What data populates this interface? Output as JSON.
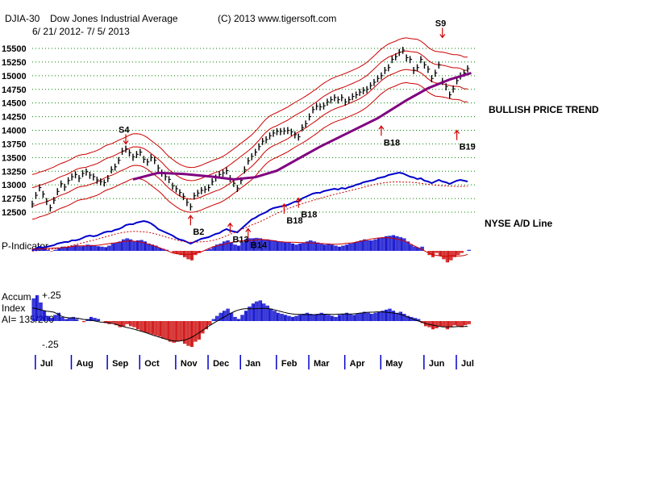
{
  "header": {
    "symbol": "DJIA-30",
    "name": "Dow Jones Industrial Average",
    "copyright": "(C) 2013 www.tigersoft.com",
    "date_range": "6/ 21/ 2012- 7/ 5/ 2013"
  },
  "annotations": {
    "trend": "BULLISH PRICE TREND",
    "ad_line": "NYSE A/D Line",
    "p_indicator": "P-Indicator",
    "accum_title_1": "Accum",
    "accum_title_2": "Index",
    "ai_label": "AI= 135/200",
    "accum_top": "+.25",
    "accum_bottom": "-.25"
  },
  "colors": {
    "price_bar": "#000000",
    "band": "#cc0000",
    "ma": "#800080",
    "ad_line": "#0000cc",
    "positive": "#0000cc",
    "negative": "#cc0000",
    "grid": "#008000",
    "signal": "#cc0000",
    "month_tick": "#0000cc"
  },
  "chart_data": {
    "type": "line",
    "title": "DJIA-30 Dow Jones Industrial Average",
    "subtitle": "6/ 21/ 2012- 7/ 5/ 2013",
    "y_ticks": [
      12500,
      12750,
      13000,
      13250,
      13500,
      13750,
      14000,
      14250,
      14500,
      14750,
      15000,
      15250,
      15500
    ],
    "ylim": [
      12500,
      15500
    ],
    "months": [
      "Jul",
      "Aug",
      "Sep",
      "Oct",
      "Nov",
      "Dec",
      "Jan",
      "Feb",
      "Mar",
      "Apr",
      "May",
      "Jun",
      "Jul"
    ],
    "month_start_index": [
      4,
      14,
      24,
      33,
      43,
      52,
      61,
      71,
      80,
      90,
      100,
      112,
      121
    ],
    "price_close": [
      12650,
      12810,
      12950,
      12830,
      12700,
      12580,
      12720,
      12880,
      13020,
      12960,
      13080,
      13150,
      13190,
      13120,
      13210,
      13240,
      13180,
      13150,
      13090,
      13060,
      13040,
      13120,
      13280,
      13330,
      13450,
      13620,
      13660,
      13590,
      13510,
      13560,
      13600,
      13470,
      13420,
      13500,
      13450,
      13310,
      13220,
      13150,
      13100,
      12980,
      12930,
      12860,
      12790,
      12680,
      12600,
      12800,
      12850,
      12900,
      12920,
      12950,
      13060,
      13130,
      13190,
      13220,
      13260,
      13120,
      13030,
      12940,
      13080,
      13280,
      13440,
      13520,
      13600,
      13700,
      13800,
      13830,
      13900,
      13950,
      13980,
      13980,
      13990,
      14000,
      13970,
      13920,
      13880,
      14050,
      14120,
      14250,
      14380,
      14440,
      14430,
      14450,
      14520,
      14560,
      14600,
      14560,
      14600,
      14520,
      14560,
      14620,
      14650,
      14700,
      14730,
      14750,
      14820,
      14880,
      14950,
      15000,
      15100,
      15150,
      15300,
      15350,
      15430,
      15470,
      15330,
      15300,
      15100,
      15150,
      15300,
      15200,
      15120,
      14950,
      15050,
      15200,
      14900,
      14800,
      14650,
      14760,
      14910,
      15000,
      15050,
      15130
    ],
    "ma_values": [
      {
        "x": 28,
        "y": 13100
      },
      {
        "x": 35,
        "y": 13220
      },
      {
        "x": 42,
        "y": 13200
      },
      {
        "x": 50,
        "y": 13150
      },
      {
        "x": 56,
        "y": 13100
      },
      {
        "x": 62,
        "y": 13140
      },
      {
        "x": 68,
        "y": 13260
      },
      {
        "x": 74,
        "y": 13480
      },
      {
        "x": 80,
        "y": 13700
      },
      {
        "x": 88,
        "y": 13960
      },
      {
        "x": 96,
        "y": 14220
      },
      {
        "x": 104,
        "y": 14550
      },
      {
        "x": 110,
        "y": 14770
      },
      {
        "x": 116,
        "y": 14930
      },
      {
        "x": 122,
        "y": 15050
      }
    ],
    "signals": [
      {
        "label": "S4",
        "x": 26,
        "y": 13750,
        "dir": "down"
      },
      {
        "label": "S9",
        "x": 114,
        "y": 15700,
        "dir": "down"
      },
      {
        "label": "B2",
        "x": 44,
        "y": 12260,
        "dir": "up"
      },
      {
        "label": "B13",
        "x": 55,
        "y": 12120,
        "dir": "up"
      },
      {
        "label": "B14",
        "x": 60,
        "y": 12020,
        "dir": "up"
      },
      {
        "label": "B18",
        "x": 70,
        "y": 12470,
        "dir": "up"
      },
      {
        "label": "B18",
        "x": 74,
        "y": 12580,
        "dir": "up"
      },
      {
        "label": "B18",
        "x": 97,
        "y": 13900,
        "dir": "up"
      },
      {
        "label": "B19",
        "x": 118,
        "y": 13820,
        "dir": "up"
      }
    ],
    "ad_line": [
      0.02,
      0.04,
      0.06,
      0.05,
      0.06,
      0.07,
      0.08,
      0.1,
      0.11,
      0.12,
      0.12,
      0.14,
      0.14,
      0.15,
      0.17,
      0.19,
      0.2,
      0.19,
      0.2,
      0.22,
      0.24,
      0.25,
      0.25,
      0.27,
      0.28,
      0.3,
      0.33,
      0.34,
      0.34,
      0.36,
      0.37,
      0.38,
      0.37,
      0.35,
      0.32,
      0.28,
      0.26,
      0.24,
      0.22,
      0.2,
      0.17,
      0.15,
      0.14,
      0.12,
      0.1,
      0.12,
      0.14,
      0.16,
      0.17,
      0.18,
      0.2,
      0.22,
      0.23,
      0.26,
      0.28,
      0.26,
      0.25,
      0.24,
      0.28,
      0.32,
      0.36,
      0.4,
      0.42,
      0.45,
      0.47,
      0.49,
      0.52,
      0.54,
      0.55,
      0.56,
      0.57,
      0.58,
      0.6,
      0.62,
      0.62,
      0.66,
      0.68,
      0.7,
      0.72,
      0.73,
      0.73,
      0.75,
      0.76,
      0.77,
      0.78,
      0.77,
      0.79,
      0.78,
      0.8,
      0.81,
      0.83,
      0.84,
      0.86,
      0.87,
      0.88,
      0.89,
      0.91,
      0.92,
      0.93,
      0.95,
      0.96,
      0.97,
      0.98,
      0.97,
      0.95,
      0.93,
      0.92,
      0.9,
      0.91,
      0.88,
      0.87,
      0.85,
      0.87,
      0.89,
      0.87,
      0.86,
      0.84,
      0.86,
      0.88,
      0.89,
      0.88,
      0.87
    ],
    "p_indicator": [
      0.1,
      0.15,
      0.2,
      0.1,
      0.05,
      -0.02,
      0.05,
      0.12,
      0.2,
      0.18,
      0.2,
      0.25,
      0.28,
      0.22,
      0.25,
      0.3,
      0.28,
      0.25,
      0.22,
      0.2,
      0.18,
      0.25,
      0.35,
      0.4,
      0.45,
      0.55,
      0.6,
      0.55,
      0.45,
      0.5,
      0.52,
      0.45,
      0.35,
      0.3,
      0.25,
      0.15,
      0.1,
      0.05,
      0.0,
      -0.1,
      -0.15,
      -0.2,
      -0.3,
      -0.4,
      -0.45,
      -0.2,
      -0.1,
      0.0,
      0.05,
      0.1,
      0.2,
      0.3,
      0.35,
      0.45,
      0.5,
      0.4,
      0.3,
      0.25,
      0.4,
      0.55,
      0.6,
      0.6,
      0.62,
      0.6,
      0.55,
      0.55,
      0.5,
      0.5,
      0.45,
      0.45,
      0.4,
      0.4,
      0.35,
      0.3,
      0.35,
      0.4,
      0.45,
      0.5,
      0.45,
      0.4,
      0.35,
      0.3,
      0.35,
      0.3,
      0.25,
      0.2,
      0.25,
      0.3,
      0.35,
      0.4,
      0.45,
      0.5,
      0.55,
      0.5,
      0.5,
      0.55,
      0.6,
      0.65,
      0.7,
      0.72,
      0.75,
      0.7,
      0.65,
      0.6,
      0.45,
      0.3,
      0.2,
      0.15,
      0.2,
      0.0,
      -0.2,
      -0.3,
      -0.1,
      -0.25,
      -0.4,
      -0.55,
      -0.45,
      -0.3,
      -0.2,
      -0.1,
      0.0,
      0.05
    ],
    "accum_index": [
      0.22,
      0.25,
      0.18,
      0.1,
      0.05,
      0.03,
      0.06,
      0.08,
      0.04,
      0.02,
      0.03,
      0.04,
      0.02,
      0.0,
      -0.01,
      0.02,
      0.04,
      0.03,
      0.02,
      0.0,
      -0.02,
      -0.03,
      -0.02,
      -0.04,
      -0.06,
      -0.05,
      -0.03,
      -0.05,
      -0.06,
      -0.08,
      -0.1,
      -0.11,
      -0.12,
      -0.13,
      -0.14,
      -0.15,
      -0.17,
      -0.18,
      -0.2,
      -0.21,
      -0.2,
      -0.19,
      -0.22,
      -0.24,
      -0.25,
      -0.2,
      -0.18,
      -0.12,
      -0.08,
      -0.04,
      0.02,
      0.05,
      0.08,
      0.1,
      0.12,
      0.08,
      0.04,
      0.02,
      0.06,
      0.1,
      0.14,
      0.17,
      0.19,
      0.2,
      0.17,
      0.15,
      0.12,
      0.1,
      0.08,
      0.07,
      0.06,
      0.05,
      0.04,
      0.05,
      0.06,
      0.07,
      0.08,
      0.07,
      0.06,
      0.07,
      0.08,
      0.07,
      0.06,
      0.05,
      0.04,
      0.06,
      0.07,
      0.08,
      0.07,
      0.06,
      0.07,
      0.08,
      0.09,
      0.08,
      0.07,
      0.08,
      0.09,
      0.1,
      0.11,
      0.12,
      0.1,
      0.08,
      0.09,
      0.07,
      0.05,
      0.04,
      0.03,
      0.02,
      -0.02,
      -0.05,
      -0.06,
      -0.08,
      -0.07,
      -0.05,
      -0.06,
      -0.08,
      -0.06,
      -0.04,
      -0.05,
      -0.06,
      -0.04,
      -0.03
    ]
  }
}
